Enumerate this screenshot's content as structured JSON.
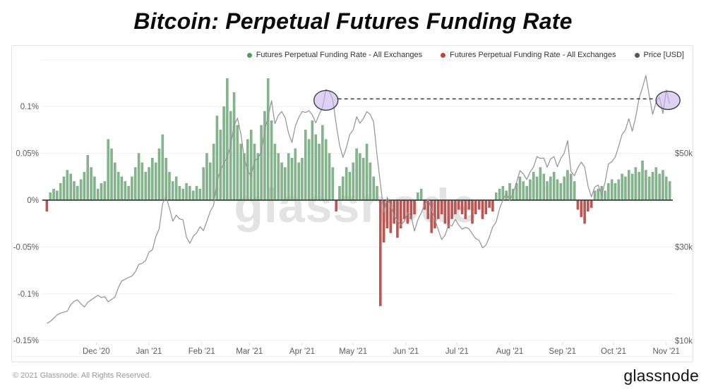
{
  "title": "Bitcoin: Perpetual Futures Funding Rate",
  "legend": {
    "items": [
      {
        "label": "Futures Perpetual Funding Rate - All Exchanges",
        "color": "#4d9f5a"
      },
      {
        "label": "Futures Perpetual Funding Rate - All Exchanges",
        "color": "#c0443c"
      },
      {
        "label": "Price [USD]",
        "color": "#565656"
      }
    ]
  },
  "watermark": "glassnode",
  "footer": {
    "copyright": "© 2021 Glassnode. All Rights Reserved.",
    "brand": "glassnode"
  },
  "chart_data": {
    "type": "combo",
    "title": "Bitcoin: Perpetual Futures Funding Rate",
    "start_date": "2020-11-01",
    "point_interval_days": 2,
    "series": [
      {
        "name": "Futures Perpetual Funding Rate - All Exchanges (positive)",
        "type": "bar",
        "color": "#85b58d",
        "edge_color": "#67a073",
        "unit": "%"
      },
      {
        "name": "Futures Perpetual Funding Rate - All Exchanges (negative)",
        "type": "bar",
        "color": "#c2534e",
        "edge_color": "#a84440",
        "unit": "%"
      },
      {
        "name": "Price [USD]",
        "type": "line",
        "color": "#929292",
        "unit": "USD thousands"
      }
    ],
    "funding_rate_pct": [
      -0.012,
      0.008,
      0.012,
      0.01,
      0.018,
      0.025,
      0.032,
      0.028,
      0.02,
      0.015,
      0.022,
      0.03,
      0.048,
      0.035,
      0.025,
      0.012,
      0.018,
      0.02,
      0.065,
      0.055,
      0.04,
      0.03,
      0.025,
      0.02,
      0.015,
      0.025,
      0.035,
      0.05,
      0.04,
      0.03,
      0.035,
      0.045,
      0.04,
      0.055,
      0.07,
      0.045,
      0.03,
      0.02,
      0.025,
      0.015,
      0.012,
      0.018,
      0.015,
      0.01,
      0.015,
      0.012,
      0.035,
      0.05,
      0.04,
      0.06,
      0.09,
      0.075,
      0.1,
      0.13,
      0.095,
      0.115,
      0.08,
      0.06,
      0.05,
      0.065,
      0.075,
      0.06,
      0.05,
      0.08,
      0.095,
      0.13,
      0.085,
      0.06,
      0.05,
      0.04,
      0.035,
      0.05,
      0.045,
      0.055,
      0.04,
      0.045,
      0.075,
      0.065,
      0.085,
      0.07,
      0.06,
      0.08,
      0.065,
      0.05,
      0.035,
      -0.012,
      0.015,
      0.025,
      0.035,
      0.03,
      0.04,
      0.055,
      0.05,
      0.045,
      0.06,
      0.04,
      0.025,
      0.015,
      -0.113,
      -0.045,
      -0.03,
      -0.035,
      -0.025,
      -0.04,
      -0.03,
      -0.02,
      -0.025,
      -0.02,
      -0.015,
      0.008,
      0.012,
      -0.01,
      -0.02,
      -0.035,
      -0.03,
      -0.02,
      -0.015,
      -0.025,
      -0.03,
      -0.02,
      -0.015,
      -0.01,
      -0.015,
      -0.02,
      -0.01,
      -0.025,
      -0.015,
      -0.01,
      -0.02,
      -0.015,
      -0.008,
      -0.012,
      0.008,
      0.012,
      0.015,
      0.01,
      0.018,
      0.012,
      0.018,
      0.025,
      0.02,
      0.015,
      0.022,
      0.03,
      0.025,
      0.035,
      0.028,
      0.02,
      0.025,
      0.03,
      0.022,
      0.018,
      0.025,
      0.032,
      0.028,
      0.02,
      -0.01,
      -0.018,
      -0.025,
      -0.012,
      -0.008,
      0.01,
      0.012,
      0.015,
      0.01,
      0.018,
      0.022,
      0.018,
      0.022,
      0.028,
      0.025,
      0.032,
      0.028,
      0.035,
      0.03,
      0.042,
      0.032,
      0.025,
      0.03,
      0.035,
      0.028,
      0.032,
      0.025,
      0.02
    ],
    "price_usd_k": [
      13.7,
      14.1,
      14.8,
      15.5,
      15.9,
      16.1,
      16.3,
      17.7,
      18.4,
      18.7,
      17.9,
      17.2,
      18.2,
      18.7,
      19.2,
      19.7,
      19.2,
      19.4,
      18.3,
      18.8,
      19.3,
      21.3,
      22.8,
      23.1,
      23.5,
      23.8,
      24.7,
      26.3,
      26.5,
      27.1,
      28.9,
      29.4,
      32.2,
      33.9,
      39.2,
      40.8,
      38.3,
      35.5,
      36.8,
      36.0,
      35.8,
      32.1,
      30.8,
      32.3,
      33.0,
      34.3,
      33.5,
      35.5,
      37.6,
      38.9,
      44.0,
      46.4,
      47.9,
      49.2,
      51.6,
      55.9,
      57.5,
      54.1,
      48.9,
      46.3,
      45.1,
      48.4,
      48.9,
      50.3,
      54.9,
      57.8,
      61.2,
      56.3,
      58.1,
      58.9,
      57.6,
      54.3,
      52.3,
      55.8,
      57.6,
      58.9,
      58.7,
      59.1,
      58.2,
      56.5,
      58.3,
      59.8,
      63.6,
      63.2,
      61.5,
      56.2,
      51.7,
      49.1,
      51.2,
      54.0,
      55.0,
      57.8,
      56.4,
      57.4,
      58.9,
      58.3,
      56.7,
      49.7,
      43.5,
      37.3,
      40.6,
      38.8,
      36.7,
      35.7,
      34.6,
      35.5,
      37.3,
      36.7,
      33.4,
      35.8,
      37.3,
      39.0,
      40.2,
      38.1,
      35.8,
      33.7,
      31.6,
      32.5,
      34.7,
      34.5,
      35.9,
      34.7,
      33.8,
      34.2,
      33.9,
      32.8,
      31.8,
      31.4,
      29.8,
      30.4,
      32.1,
      34.3,
      35.3,
      38.2,
      40.0,
      41.5,
      39.9,
      41.5,
      43.8,
      46.3,
      45.6,
      44.4,
      46.0,
      47.1,
      49.3,
      48.9,
      49.0,
      47.0,
      48.8,
      49.3,
      47.1,
      48.9,
      50.0,
      52.7,
      46.1,
      45.2,
      46.9,
      48.1,
      47.1,
      43.0,
      40.7,
      42.8,
      43.2,
      41.0,
      43.8,
      47.7,
      48.2,
      49.2,
      51.5,
      54.0,
      55.0,
      57.4,
      54.7,
      57.7,
      61.7,
      64.0,
      66.6,
      62.2,
      58.3,
      60.9,
      62.0,
      58.5,
      63.5,
      60.5
    ],
    "left_axis": {
      "unit": "%",
      "ticks": [
        {
          "label": "",
          "value": 0.15
        },
        {
          "label": "0.1%",
          "value": 0.1
        },
        {
          "label": "0.05%",
          "value": 0.05
        },
        {
          "label": "0%",
          "value": 0
        },
        {
          "label": "-0.05%",
          "value": -0.05
        },
        {
          "label": "-0.1%",
          "value": -0.1
        },
        {
          "label": "-0.15%",
          "value": -0.15
        }
      ]
    },
    "right_axis": {
      "unit": "USD",
      "ticks": [
        {
          "label": "$50k",
          "value": 50
        },
        {
          "label": "$30k",
          "value": 30
        },
        {
          "label": "$10k",
          "value": 10
        }
      ]
    },
    "x_axis": {
      "months": [
        {
          "label": "Dec '20",
          "day": 30
        },
        {
          "label": "Jan '21",
          "day": 61
        },
        {
          "label": "Feb '21",
          "day": 92
        },
        {
          "label": "Mar '21",
          "day": 120
        },
        {
          "label": "Apr '21",
          "day": 151
        },
        {
          "label": "May '21",
          "day": 181
        },
        {
          "label": "Jun '21",
          "day": 212
        },
        {
          "label": "Jul '21",
          "day": 242
        },
        {
          "label": "Aug '21",
          "day": 273
        },
        {
          "label": "Sep '21",
          "day": 304
        },
        {
          "label": "Oct '21",
          "day": 334
        },
        {
          "label": "Nov '21",
          "day": 365
        }
      ]
    },
    "annotations": {
      "ellipses": [
        {
          "name": "april-price-top",
          "day": 165,
          "price_k": 61.3,
          "rx": 17,
          "ry": 14
        },
        {
          "name": "november-price-top",
          "day": 366,
          "price_k": 61.3,
          "rx": 17,
          "ry": 13
        }
      ],
      "connector_price_k": 61.6
    }
  }
}
